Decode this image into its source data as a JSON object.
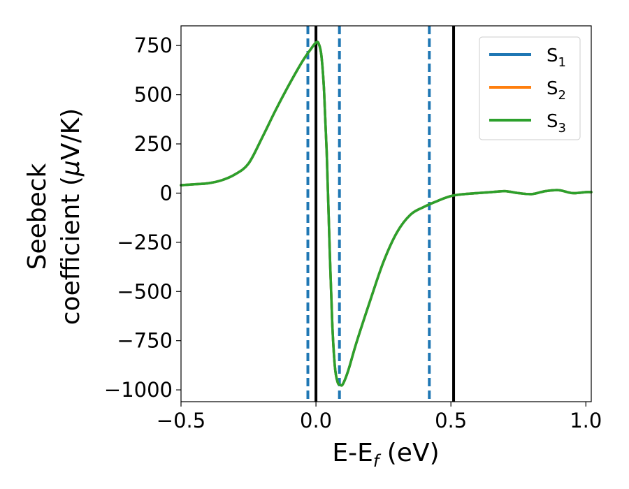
{
  "chart_data": {
    "type": "line",
    "xlabel": {
      "main": "E-E",
      "sub": "f",
      "unit": " (eV)"
    },
    "ylabel": {
      "line1": "Seebeck",
      "line2": "coefficient  (",
      "mu": "μ",
      "unit": "V/K)"
    },
    "xlim": [
      -0.5,
      1.02
    ],
    "ylim": [
      -1060,
      850
    ],
    "xticks": [
      {
        "value": -0.5,
        "label": "−0.5"
      },
      {
        "value": 0.0,
        "label": "0.0"
      },
      {
        "value": 0.5,
        "label": "0.5"
      },
      {
        "value": 1.0,
        "label": "1.0"
      }
    ],
    "yticks": [
      {
        "value": 750,
        "label": "750"
      },
      {
        "value": 500,
        "label": "500"
      },
      {
        "value": 250,
        "label": "250"
      },
      {
        "value": 0,
        "label": "0"
      },
      {
        "value": -250,
        "label": "−250"
      },
      {
        "value": -500,
        "label": "−500"
      },
      {
        "value": -750,
        "label": "−750"
      },
      {
        "value": -1000,
        "label": "−1000"
      }
    ],
    "grid": false,
    "legend_position": "top-right",
    "series": [
      {
        "name": "S",
        "sub": "1",
        "color": "#1f77b4",
        "x": [
          -0.5,
          -0.45,
          -0.4,
          -0.35,
          -0.3,
          -0.25,
          -0.2,
          -0.15,
          -0.1,
          -0.05,
          -0.02,
          0.0,
          0.01,
          0.02,
          0.03,
          0.04,
          0.05,
          0.06,
          0.07,
          0.08,
          0.09,
          0.1,
          0.12,
          0.15,
          0.2,
          0.25,
          0.3,
          0.35,
          0.4,
          0.45,
          0.5,
          0.55,
          0.6,
          0.65,
          0.7,
          0.75,
          0.8,
          0.85,
          0.9,
          0.95,
          1.0,
          1.02
        ],
        "y": [
          40,
          45,
          50,
          65,
          95,
          150,
          280,
          420,
          550,
          670,
          730,
          765,
          760,
          700,
          520,
          200,
          -250,
          -650,
          -880,
          -960,
          -975,
          -970,
          -900,
          -760,
          -550,
          -350,
          -200,
          -110,
          -70,
          -40,
          -15,
          -5,
          0,
          5,
          10,
          0,
          -5,
          10,
          15,
          0,
          5,
          5
        ]
      },
      {
        "name": "S",
        "sub": "2",
        "color": "#ff7f0e",
        "x": [
          -0.5,
          -0.45,
          -0.4,
          -0.35,
          -0.3,
          -0.25,
          -0.2,
          -0.15,
          -0.1,
          -0.05,
          -0.02,
          0.0,
          0.01,
          0.02,
          0.03,
          0.04,
          0.05,
          0.06,
          0.07,
          0.08,
          0.09,
          0.1,
          0.12,
          0.15,
          0.2,
          0.25,
          0.3,
          0.35,
          0.4,
          0.45,
          0.5,
          0.55,
          0.6,
          0.65,
          0.7,
          0.75,
          0.8,
          0.85,
          0.9,
          0.95,
          1.0,
          1.02
        ],
        "y": [
          40,
          45,
          50,
          65,
          95,
          150,
          280,
          420,
          550,
          670,
          730,
          765,
          760,
          700,
          520,
          200,
          -250,
          -650,
          -880,
          -960,
          -975,
          -970,
          -900,
          -760,
          -550,
          -350,
          -200,
          -110,
          -70,
          -40,
          -15,
          -5,
          0,
          5,
          10,
          0,
          -5,
          10,
          15,
          0,
          5,
          5
        ]
      },
      {
        "name": "S",
        "sub": "3",
        "color": "#2ca02c",
        "x": [
          -0.5,
          -0.45,
          -0.4,
          -0.35,
          -0.3,
          -0.25,
          -0.2,
          -0.15,
          -0.1,
          -0.05,
          -0.02,
          0.0,
          0.01,
          0.02,
          0.03,
          0.04,
          0.05,
          0.06,
          0.07,
          0.08,
          0.09,
          0.1,
          0.12,
          0.15,
          0.2,
          0.25,
          0.3,
          0.35,
          0.4,
          0.45,
          0.5,
          0.55,
          0.6,
          0.65,
          0.7,
          0.75,
          0.8,
          0.85,
          0.9,
          0.95,
          1.0,
          1.02
        ],
        "y": [
          40,
          45,
          50,
          65,
          95,
          150,
          280,
          420,
          550,
          670,
          730,
          765,
          760,
          700,
          520,
          200,
          -250,
          -650,
          -880,
          -960,
          -975,
          -970,
          -900,
          -760,
          -550,
          -350,
          -200,
          -110,
          -70,
          -40,
          -15,
          -5,
          0,
          5,
          10,
          0,
          -5,
          10,
          15,
          0,
          5,
          5
        ]
      }
    ],
    "vlines": [
      {
        "x": -0.03,
        "color": "#1f77b4",
        "style": "dashed"
      },
      {
        "x": 0.0,
        "color": "#000000",
        "style": "solid"
      },
      {
        "x": 0.087,
        "color": "#1f77b4",
        "style": "dashed"
      },
      {
        "x": 0.42,
        "color": "#1f77b4",
        "style": "dashed"
      },
      {
        "x": 0.51,
        "color": "#000000",
        "style": "solid"
      }
    ]
  }
}
